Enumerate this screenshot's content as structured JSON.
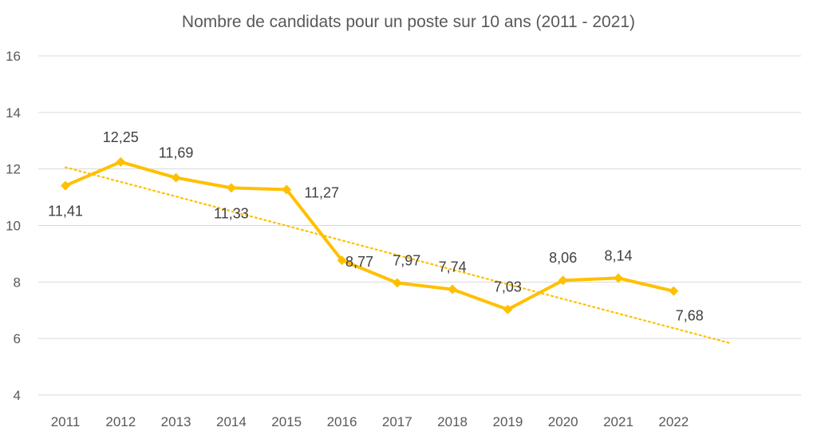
{
  "chart_data": {
    "type": "line",
    "title": "Nombre de candidats pour un poste sur 10 ans  (2011 - 2021)",
    "xlabel": "",
    "ylabel": "",
    "categories": [
      "2011",
      "2012",
      "2013",
      "2014",
      "2015",
      "2016",
      "2017",
      "2018",
      "2019",
      "2020",
      "2021",
      "2022"
    ],
    "ylim": [
      4,
      16
    ],
    "yticks": [
      4,
      6,
      8,
      10,
      12,
      14,
      16
    ],
    "grid": true,
    "legend": "none",
    "series": [
      {
        "values": [
          11.41,
          12.25,
          11.69,
          11.33,
          11.27,
          8.77,
          7.97,
          7.74,
          7.03,
          8.06,
          8.14,
          7.68
        ],
        "labels": [
          "11,41",
          "12,25",
          "11,69",
          "11,33",
          "11,27",
          "8,77",
          "7,97",
          "7,74",
          "7,03",
          "8,06",
          "8,14",
          "7,68"
        ],
        "color": "#FFC000"
      }
    ],
    "trendline": {
      "type": "linear",
      "style": "dotted",
      "color": "#FFC000",
      "start": [
        2011,
        12.06
      ],
      "end": [
        2023,
        5.85
      ]
    }
  }
}
